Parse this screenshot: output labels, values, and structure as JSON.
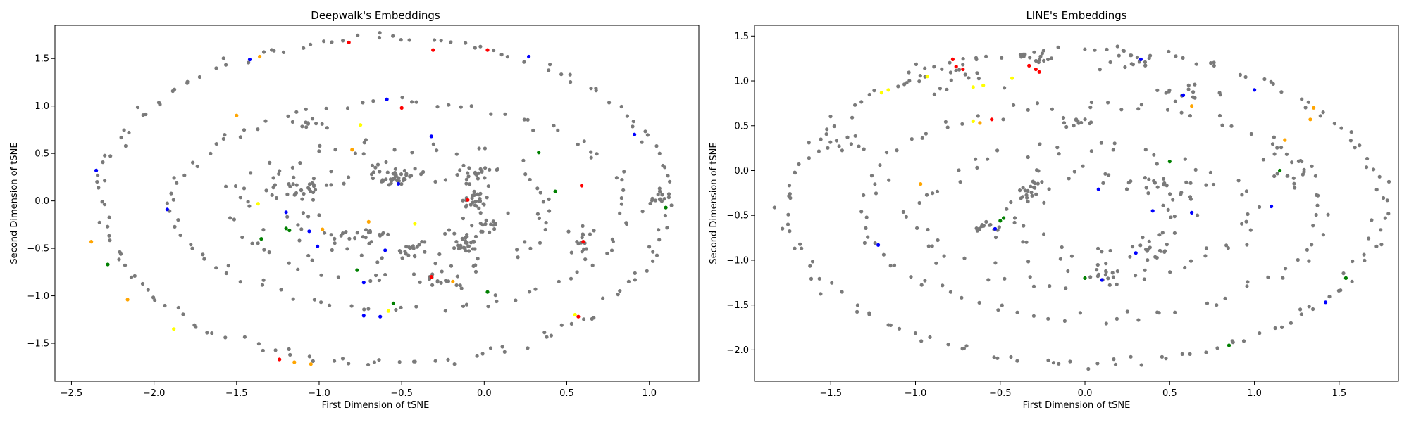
{
  "chart_data": [
    {
      "type": "scatter",
      "title": "Deepwalk's Embeddings",
      "xlabel": "First Dimension of tSNE",
      "ylabel": "Second Dimension of tSNE",
      "xlim": [
        -2.6,
        1.3
      ],
      "ylim": [
        -1.9,
        1.85
      ],
      "xticks": [
        -2.5,
        -2.0,
        -1.5,
        -1.0,
        -0.5,
        0.0,
        0.5,
        1.0
      ],
      "xtick_labels": [
        "−2.5",
        "−2.0",
        "−1.5",
        "−1.0",
        "−0.5",
        "0.0",
        "0.5",
        "1.0"
      ],
      "yticks": [
        -1.5,
        -1.0,
        -0.5,
        0.0,
        0.5,
        1.0,
        1.5
      ],
      "ytick_labels": [
        "−1.5",
        "−1.0",
        "−0.5",
        "0.0",
        "0.5",
        "1.0",
        "1.5"
      ],
      "grid": false,
      "ring_clusters": [
        {
          "cx": -0.6,
          "cy": 0.0,
          "rx": 1.72,
          "ry": 1.72,
          "count": 150,
          "jitter": 0.025,
          "phase": 0.2
        },
        {
          "cx": -0.5,
          "cy": -0.05,
          "rx": 1.38,
          "ry": 1.1,
          "count": 95,
          "jitter": 0.035,
          "phase": 0.9
        },
        {
          "cx": -0.55,
          "cy": -0.1,
          "rx": 0.95,
          "ry": 0.7,
          "count": 70,
          "jitter": 0.05,
          "phase": 1.7
        },
        {
          "cx": -0.6,
          "cy": -0.1,
          "rx": 0.55,
          "ry": 0.45,
          "count": 50,
          "jitter": 0.06,
          "phase": 2.3
        }
      ],
      "blob_clusters": [
        {
          "cx": -0.55,
          "cy": 0.25,
          "sx": 0.06,
          "sy": 0.05,
          "count": 35
        },
        {
          "cx": -0.1,
          "cy": -0.45,
          "sx": 0.05,
          "sy": 0.06,
          "count": 30
        },
        {
          "cx": -0.05,
          "cy": 0.0,
          "sx": 0.04,
          "sy": 0.05,
          "count": 22
        },
        {
          "cx": -0.75,
          "cy": -0.35,
          "sx": 0.08,
          "sy": 0.03,
          "count": 20
        },
        {
          "cx": -1.15,
          "cy": 0.15,
          "sx": 0.12,
          "sy": 0.06,
          "count": 28
        },
        {
          "cx": -0.05,
          "cy": 0.3,
          "sx": 0.05,
          "sy": 0.05,
          "count": 18
        },
        {
          "cx": 0.6,
          "cy": -0.4,
          "sx": 0.03,
          "sy": 0.1,
          "count": 15
        },
        {
          "cx": -0.25,
          "cy": -0.85,
          "sx": 0.08,
          "sy": 0.04,
          "count": 16
        },
        {
          "cx": -0.45,
          "cy": -0.5,
          "sx": 0.05,
          "sy": 0.05,
          "count": 14
        },
        {
          "cx": 1.05,
          "cy": 0.05,
          "sx": 0.03,
          "sy": 0.06,
          "count": 12
        },
        {
          "cx": -1.05,
          "cy": 0.8,
          "sx": 0.05,
          "sy": 0.03,
          "count": 10
        },
        {
          "cx": 0.05,
          "cy": -0.25,
          "sx": 0.05,
          "sy": 0.05,
          "count": 14
        }
      ],
      "gray_color": "#7a7a7a",
      "highlight_points": [
        {
          "x": -0.82,
          "y": 1.67,
          "c": "#ff0000"
        },
        {
          "x": 0.02,
          "y": 1.59,
          "c": "#ff0000"
        },
        {
          "x": -0.31,
          "y": 1.59,
          "c": "#ff0000"
        },
        {
          "x": -0.5,
          "y": 0.98,
          "c": "#ff0000"
        },
        {
          "x": 0.59,
          "y": 0.16,
          "c": "#ff0000"
        },
        {
          "x": -0.1,
          "y": 0.01,
          "c": "#ff0000"
        },
        {
          "x": 0.6,
          "y": -0.43,
          "c": "#ff0000"
        },
        {
          "x": -0.32,
          "y": -0.8,
          "c": "#ff0000"
        },
        {
          "x": 0.57,
          "y": -1.22,
          "c": "#ff0000"
        },
        {
          "x": -1.24,
          "y": -1.67,
          "c": "#ff0000"
        },
        {
          "x": -1.42,
          "y": 1.49,
          "c": "#0000ff"
        },
        {
          "x": 0.27,
          "y": 1.52,
          "c": "#0000ff"
        },
        {
          "x": -0.59,
          "y": 1.07,
          "c": "#0000ff"
        },
        {
          "x": -0.32,
          "y": 0.68,
          "c": "#0000ff"
        },
        {
          "x": 0.91,
          "y": 0.7,
          "c": "#0000ff"
        },
        {
          "x": -2.35,
          "y": 0.32,
          "c": "#0000ff"
        },
        {
          "x": -0.52,
          "y": 0.18,
          "c": "#0000ff"
        },
        {
          "x": -1.92,
          "y": -0.09,
          "c": "#0000ff"
        },
        {
          "x": -1.2,
          "y": -0.12,
          "c": "#0000ff"
        },
        {
          "x": -1.06,
          "y": -0.32,
          "c": "#0000ff"
        },
        {
          "x": -1.01,
          "y": -0.48,
          "c": "#0000ff"
        },
        {
          "x": -0.6,
          "y": -0.52,
          "c": "#0000ff"
        },
        {
          "x": -0.73,
          "y": -0.86,
          "c": "#0000ff"
        },
        {
          "x": -0.73,
          "y": -1.21,
          "c": "#0000ff"
        },
        {
          "x": -0.63,
          "y": -1.22,
          "c": "#0000ff"
        },
        {
          "x": -1.36,
          "y": 1.52,
          "c": "#ffa500"
        },
        {
          "x": -1.5,
          "y": 0.9,
          "c": "#ffa500"
        },
        {
          "x": -0.8,
          "y": 0.54,
          "c": "#ffa500"
        },
        {
          "x": -2.38,
          "y": -0.43,
          "c": "#ffa500"
        },
        {
          "x": -0.98,
          "y": -0.3,
          "c": "#ffa500"
        },
        {
          "x": -0.7,
          "y": -0.22,
          "c": "#ffa500"
        },
        {
          "x": -2.16,
          "y": -1.04,
          "c": "#ffa500"
        },
        {
          "x": -1.15,
          "y": -1.7,
          "c": "#ffa500"
        },
        {
          "x": -1.05,
          "y": -1.72,
          "c": "#ffa500"
        },
        {
          "x": -0.19,
          "y": -0.85,
          "c": "#ffa500"
        },
        {
          "x": -0.75,
          "y": 0.8,
          "c": "#ffff00"
        },
        {
          "x": -1.37,
          "y": -0.03,
          "c": "#ffff00"
        },
        {
          "x": -0.42,
          "y": -0.24,
          "c": "#ffff00"
        },
        {
          "x": -1.88,
          "y": -1.35,
          "c": "#ffff00"
        },
        {
          "x": -0.58,
          "y": -1.16,
          "c": "#ffff00"
        },
        {
          "x": 0.55,
          "y": -1.2,
          "c": "#ffff00"
        },
        {
          "x": -1.2,
          "y": -0.29,
          "c": "#008000"
        },
        {
          "x": -1.35,
          "y": -0.4,
          "c": "#008000"
        },
        {
          "x": 0.33,
          "y": 0.51,
          "c": "#008000"
        },
        {
          "x": 0.43,
          "y": 0.1,
          "c": "#008000"
        },
        {
          "x": 1.1,
          "y": -0.07,
          "c": "#008000"
        },
        {
          "x": -0.77,
          "y": -0.73,
          "c": "#008000"
        },
        {
          "x": -0.55,
          "y": -1.08,
          "c": "#008000"
        },
        {
          "x": 0.02,
          "y": -0.96,
          "c": "#008000"
        },
        {
          "x": -2.28,
          "y": -0.67,
          "c": "#008000"
        },
        {
          "x": -1.18,
          "y": -0.31,
          "c": "#008000"
        }
      ]
    },
    {
      "type": "scatter",
      "title": "LINE's Embeddings",
      "xlabel": "First Dimension of tSNE",
      "ylabel": "Second Dimension of tSNE",
      "xlim": [
        -1.95,
        1.85
      ],
      "ylim": [
        -2.35,
        1.62
      ],
      "xticks": [
        -1.5,
        -1.0,
        -0.5,
        0.0,
        0.5,
        1.0,
        1.5
      ],
      "xtick_labels": [
        "−1.5",
        "−1.0",
        "−0.5",
        "0.0",
        "0.5",
        "1.0",
        "1.5"
      ],
      "yticks": [
        -2.0,
        -1.5,
        -1.0,
        -0.5,
        0.0,
        0.5,
        1.0,
        1.5
      ],
      "ytick_labels": [
        "−2.0",
        "−1.5",
        "−1.0",
        "−0.5",
        "0.0",
        "0.5",
        "1.0",
        "1.5"
      ],
      "grid": false,
      "ring_clusters": [
        {
          "cx": 0.0,
          "cy": -0.4,
          "rx": 1.75,
          "ry": 1.75,
          "count": 150,
          "jitter": 0.03,
          "phase": 0.4
        },
        {
          "cx": 0.05,
          "cy": -0.45,
          "rx": 1.35,
          "ry": 1.2,
          "count": 90,
          "jitter": 0.04,
          "phase": 1.1
        },
        {
          "cx": 0.0,
          "cy": -0.5,
          "rx": 0.95,
          "ry": 0.75,
          "count": 65,
          "jitter": 0.05,
          "phase": 2.0
        },
        {
          "cx": 0.05,
          "cy": -0.5,
          "rx": 0.5,
          "ry": 0.45,
          "count": 45,
          "jitter": 0.06,
          "phase": 2.7
        }
      ],
      "blob_clusters": [
        {
          "cx": -0.75,
          "cy": 1.05,
          "sx": 0.15,
          "sy": 0.1,
          "count": 20
        },
        {
          "cx": -0.3,
          "cy": 1.2,
          "sx": 0.07,
          "sy": 0.07,
          "count": 12
        },
        {
          "cx": 0.25,
          "cy": 1.2,
          "sx": 0.08,
          "sy": 0.06,
          "count": 14
        },
        {
          "cx": -0.3,
          "cy": -0.25,
          "sx": 0.05,
          "sy": 0.1,
          "count": 18
        },
        {
          "cx": 0.5,
          "cy": -0.2,
          "sx": 0.08,
          "sy": 0.08,
          "count": 18
        },
        {
          "cx": 0.6,
          "cy": 0.85,
          "sx": 0.08,
          "sy": 0.06,
          "count": 14
        },
        {
          "cx": -0.6,
          "cy": -0.65,
          "sx": 0.06,
          "sy": 0.04,
          "count": 14
        },
        {
          "cx": 0.1,
          "cy": -1.15,
          "sx": 0.06,
          "sy": 0.06,
          "count": 14
        },
        {
          "cx": 0.4,
          "cy": -0.9,
          "sx": 0.05,
          "sy": 0.05,
          "count": 12
        },
        {
          "cx": 1.2,
          "cy": 0.0,
          "sx": 0.05,
          "sy": 0.15,
          "count": 15
        },
        {
          "cx": -1.45,
          "cy": 0.3,
          "sx": 0.08,
          "sy": 0.06,
          "count": 10
        },
        {
          "cx": -0.05,
          "cy": 0.55,
          "sx": 0.05,
          "sy": 0.05,
          "count": 12
        }
      ],
      "gray_color": "#7a7a7a",
      "highlight_points": [
        {
          "x": -0.78,
          "y": 1.24,
          "c": "#ff0000"
        },
        {
          "x": -0.76,
          "y": 1.16,
          "c": "#ff0000"
        },
        {
          "x": -0.72,
          "y": 1.13,
          "c": "#ff0000"
        },
        {
          "x": -0.33,
          "y": 1.17,
          "c": "#ff0000"
        },
        {
          "x": -0.29,
          "y": 1.13,
          "c": "#ff0000"
        },
        {
          "x": -0.27,
          "y": 1.1,
          "c": "#ff0000"
        },
        {
          "x": -0.55,
          "y": 0.57,
          "c": "#ff0000"
        },
        {
          "x": 0.33,
          "y": 1.24,
          "c": "#0000ff"
        },
        {
          "x": 0.58,
          "y": 0.84,
          "c": "#0000ff"
        },
        {
          "x": 1.0,
          "y": 0.9,
          "c": "#0000ff"
        },
        {
          "x": -1.22,
          "y": -0.83,
          "c": "#0000ff"
        },
        {
          "x": 0.08,
          "y": -0.21,
          "c": "#0000ff"
        },
        {
          "x": -0.53,
          "y": -0.65,
          "c": "#0000ff"
        },
        {
          "x": 0.63,
          "y": -0.47,
          "c": "#0000ff"
        },
        {
          "x": 1.1,
          "y": -0.4,
          "c": "#0000ff"
        },
        {
          "x": 0.3,
          "y": -0.92,
          "c": "#0000ff"
        },
        {
          "x": 0.1,
          "y": -1.22,
          "c": "#0000ff"
        },
        {
          "x": 1.42,
          "y": -1.47,
          "c": "#0000ff"
        },
        {
          "x": 0.4,
          "y": -0.45,
          "c": "#0000ff"
        },
        {
          "x": -0.62,
          "y": 0.53,
          "c": "#ffa500"
        },
        {
          "x": 0.63,
          "y": 0.72,
          "c": "#ffa500"
        },
        {
          "x": 1.35,
          "y": 0.7,
          "c": "#ffa500"
        },
        {
          "x": 1.33,
          "y": 0.57,
          "c": "#ffa500"
        },
        {
          "x": 1.18,
          "y": 0.34,
          "c": "#ffa500"
        },
        {
          "x": -0.97,
          "y": -0.15,
          "c": "#ffa500"
        },
        {
          "x": -0.93,
          "y": 1.05,
          "c": "#ffff00"
        },
        {
          "x": -1.16,
          "y": 0.9,
          "c": "#ffff00"
        },
        {
          "x": -1.2,
          "y": 0.87,
          "c": "#ffff00"
        },
        {
          "x": -0.66,
          "y": 0.93,
          "c": "#ffff00"
        },
        {
          "x": -0.6,
          "y": 0.95,
          "c": "#ffff00"
        },
        {
          "x": -0.66,
          "y": 0.55,
          "c": "#ffff00"
        },
        {
          "x": -0.43,
          "y": 1.03,
          "c": "#ffff00"
        },
        {
          "x": -0.5,
          "y": -0.56,
          "c": "#008000"
        },
        {
          "x": -0.48,
          "y": -0.53,
          "c": "#008000"
        },
        {
          "x": 1.15,
          "y": 0.0,
          "c": "#008000"
        },
        {
          "x": 0.85,
          "y": -1.95,
          "c": "#008000"
        },
        {
          "x": 1.54,
          "y": -1.2,
          "c": "#008000"
        },
        {
          "x": 0.0,
          "y": -1.2,
          "c": "#008000"
        },
        {
          "x": 0.5,
          "y": 0.1,
          "c": "#008000"
        }
      ]
    }
  ]
}
